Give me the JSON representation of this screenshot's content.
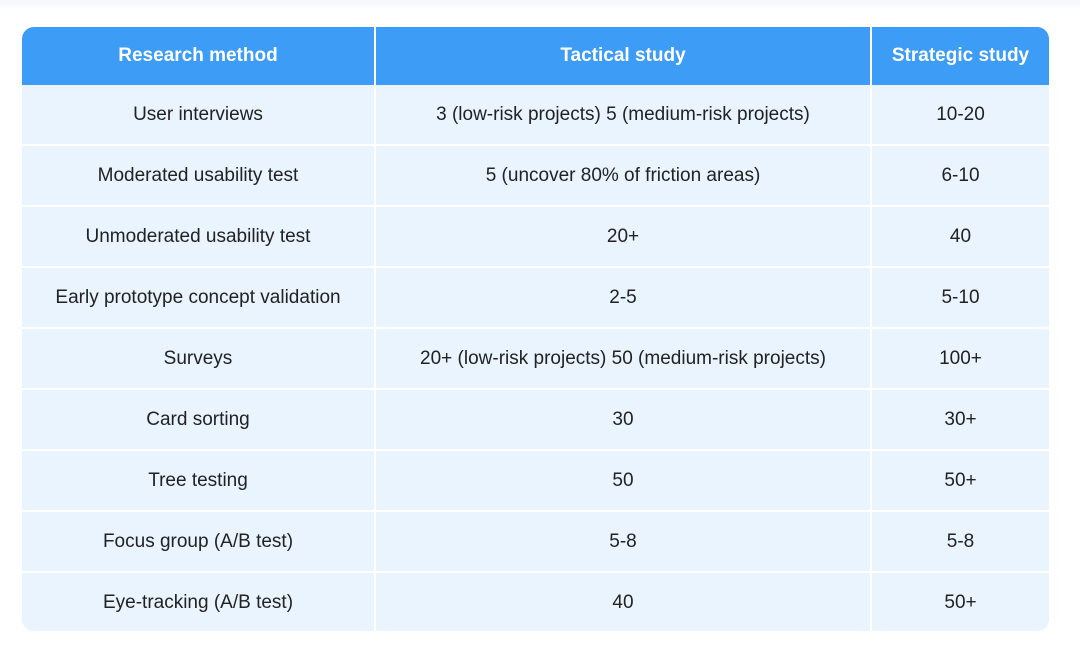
{
  "table": {
    "headers": [
      "Research method",
      "Tactical study",
      "Strategic study"
    ],
    "rows": [
      [
        "User interviews",
        "3 (low-risk projects) 5 (medium-risk projects)",
        "10-20"
      ],
      [
        "Moderated usability test",
        "5 (uncover 80% of friction areas)",
        "6-10"
      ],
      [
        "Unmoderated usability test",
        "20+",
        "40"
      ],
      [
        "Early prototype concept validation",
        "2-5",
        "5-10"
      ],
      [
        "Surveys",
        "20+ (low-risk projects) 50 (medium-risk projects)",
        "100+"
      ],
      [
        "Card sorting",
        "30",
        "30+"
      ],
      [
        "Tree testing",
        "50",
        "50+"
      ],
      [
        "Focus group (A/B test)",
        "5-8",
        "5-8"
      ],
      [
        "Eye-tracking (A/B test)",
        "40",
        "50+"
      ]
    ]
  },
  "colors": {
    "header_bg": "#3d9cf6",
    "header_text": "#ffffff",
    "cell_bg": "#e9f4ff",
    "cell_text": "#222222",
    "divider": "#ffffff"
  }
}
